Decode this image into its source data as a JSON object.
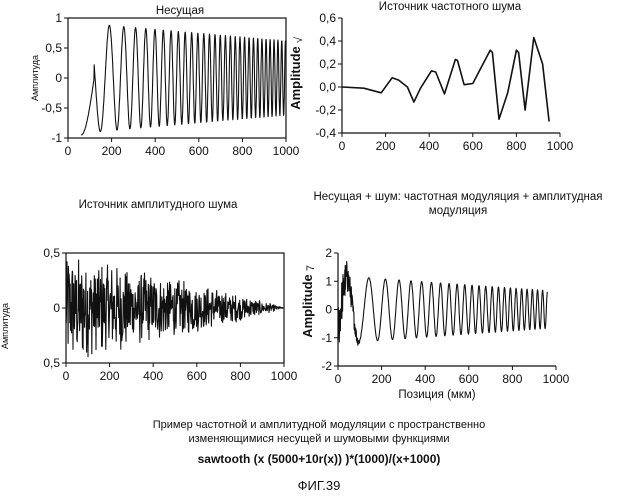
{
  "chart_data": [
    {
      "id": "carrier",
      "type": "line",
      "title": "Несущая",
      "ylabel": "Амплитуда",
      "xlabel": "",
      "xlim": [
        0,
        1000
      ],
      "ylim": [
        -1,
        1
      ],
      "xticks": [
        0,
        200,
        400,
        600,
        800,
        1000
      ],
      "yticks": [
        -1,
        -0.5,
        0,
        0.5,
        1
      ],
      "ytick_labels": [
        "-1",
        "-0,5",
        "0",
        "0,5",
        "1"
      ],
      "x_start": 60,
      "signal": "chirp"
    },
    {
      "id": "freq-noise",
      "type": "line",
      "title": "Источник частотного шума",
      "ylabel": "Amplitude",
      "ylabel_mark": "√",
      "xlabel": "",
      "xlim": [
        0,
        1000
      ],
      "ylim": [
        -0.4,
        0.6
      ],
      "xticks": [
        0,
        200,
        400,
        600,
        800,
        1000
      ],
      "yticks": [
        -0.4,
        -0.2,
        0,
        0.2,
        0.4,
        0.6
      ],
      "ytick_labels": [
        "-0,4",
        "-0,2",
        "0,0",
        "0,2",
        "0,4",
        "0,6"
      ],
      "x": [
        0,
        100,
        180,
        230,
        260,
        300,
        330,
        360,
        410,
        430,
        470,
        520,
        530,
        560,
        600,
        680,
        690,
        720,
        760,
        800,
        810,
        840,
        880,
        920,
        950
      ],
      "y": [
        0,
        -0.01,
        -0.05,
        0.08,
        0.06,
        0,
        -0.13,
        -0.01,
        0.14,
        0.13,
        -0.06,
        0.24,
        0.23,
        0.02,
        0.03,
        0.32,
        0.3,
        -0.28,
        -0.05,
        0.32,
        0.3,
        -0.2,
        0.43,
        0.2,
        -0.3
      ]
    },
    {
      "id": "amp-noise",
      "type": "line",
      "title": "Источник амплитудного шума",
      "ylabel": "Амплитуда",
      "xlabel": "",
      "xlim": [
        0,
        1000
      ],
      "ylim": [
        -0.5,
        0.5
      ],
      "xticks": [
        0,
        200,
        400,
        600,
        800,
        1000
      ],
      "yticks": [
        -0.5,
        0,
        0.5
      ],
      "ytick_labels": [
        "0,5",
        "0",
        "0,5"
      ],
      "signal": "decaying-noise"
    },
    {
      "id": "modulated",
      "type": "line",
      "title": "Несущая + шум: частотная модуляция + амплитудная модуляция",
      "ylabel": "Amplitude",
      "ylabel_mark": "7",
      "xlabel": "Позиция (мкм)",
      "xlim": [
        0,
        1000
      ],
      "ylim": [
        -2,
        2
      ],
      "xticks": [
        0,
        200,
        400,
        600,
        800,
        1000
      ],
      "yticks": [
        -2,
        -1,
        0,
        1,
        2
      ],
      "ytick_labels": [
        "-2",
        "-1",
        "0",
        "1",
        "2"
      ],
      "x_end": 960,
      "signal": "modulated"
    }
  ],
  "caption": {
    "line1": "Пример частотной и амплитудной модуляции с пространственно",
    "line2": "изменяющимися несущей и шумовыми функциями",
    "formula": "sawtooth (x (5000+10r(x)) )*(1000)/(x+1000)",
    "figure_label": "ФИГ.39"
  }
}
